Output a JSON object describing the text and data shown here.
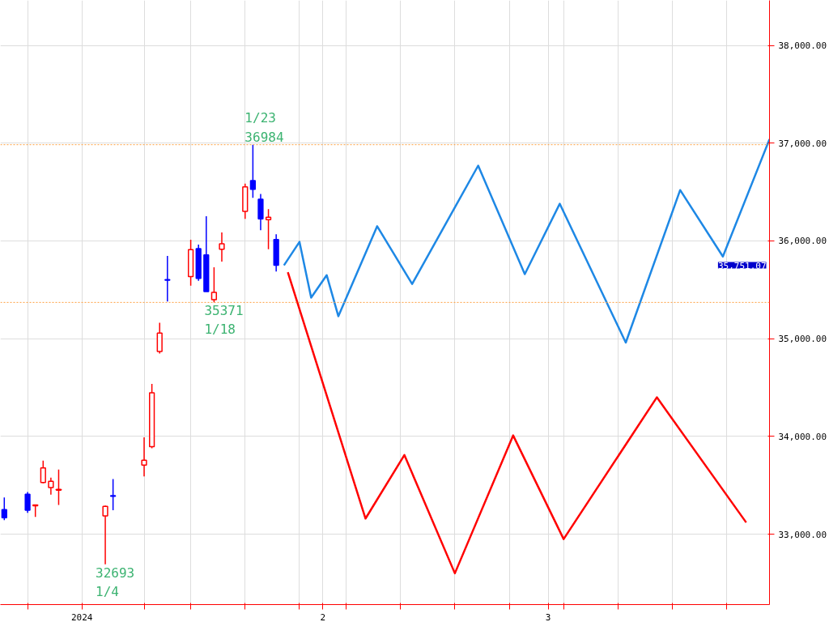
{
  "chart_data": {
    "type": "candlestick",
    "x": [
      "2023-12-22",
      "2023-12-25",
      "2023-12-26",
      "2023-12-27",
      "2023-12-28",
      "2023-12-29",
      "2024-01-04",
      "2024-01-05",
      "2024-01-09",
      "2024-01-10",
      "2024-01-11",
      "2024-01-12",
      "2024-01-15",
      "2024-01-16",
      "2024-01-17",
      "2024-01-18",
      "2024-01-19",
      "2024-01-22",
      "2024-01-23",
      "2024-01-24",
      "2024-01-25",
      "2024-01-26"
    ],
    "ohlc": [
      [
        33251,
        33375,
        33143,
        33168
      ],
      [
        33409,
        33431,
        33218,
        33246
      ],
      [
        33290,
        33298,
        33176,
        33298
      ],
      [
        33528,
        33752,
        33520,
        33678
      ],
      [
        33478,
        33578,
        33404,
        33541
      ],
      [
        33450,
        33661,
        33298,
        33458
      ],
      [
        33188,
        33292,
        32693,
        33284
      ],
      [
        33395,
        33564,
        33246,
        33387
      ],
      [
        33707,
        33990,
        33591,
        33757
      ],
      [
        33896,
        34537,
        33879,
        34446
      ],
      [
        34869,
        35163,
        34848,
        35058
      ],
      [
        35605,
        35846,
        35380,
        35597
      ],
      [
        35636,
        36012,
        35542,
        35910
      ],
      [
        35921,
        35963,
        35592,
        35616
      ],
      [
        35857,
        36253,
        35481,
        35481
      ],
      [
        35400,
        35730,
        35371,
        35473
      ],
      [
        35915,
        36087,
        35788,
        35971
      ],
      [
        36303,
        36585,
        36226,
        36552
      ],
      [
        36616,
        36984,
        36441,
        36527
      ],
      [
        36427,
        36480,
        36109,
        36226
      ],
      [
        36217,
        36325,
        35915,
        36242
      ],
      [
        36015,
        36068,
        35686,
        35751
      ]
    ],
    "colors": [
      "#0000ff",
      "#0000ff",
      "#ff0000",
      "#ff0000",
      "#ff0000",
      "#ff0000",
      "#ff0000",
      "#0000ff",
      "#ff0000",
      "#ff0000",
      "#ff0000",
      "#0000ff",
      "#ff0000",
      "#0000ff",
      "#0000ff",
      "#ff0000",
      "#ff0000",
      "#ff0000",
      "#0000ff",
      "#0000ff",
      "#ff0000",
      "#0000ff"
    ],
    "series": [
      {
        "type": "line",
        "color": "#1e88e5",
        "x": [
          "2024-01-27",
          "2024-01-29",
          "2024-01-30T12:00",
          "2024-02-01T12:00",
          "2024-02-03",
          "2024-02-08",
          "2024-02-12T12:00",
          "2024-02-21",
          "2024-02-27",
          "2024-03-02T12:00",
          "2024-03-11",
          "2024-03-18",
          "2024-03-23T12:00",
          "2024-03-29T12:00"
        ],
        "values": [
          35750,
          35990,
          35420,
          35650,
          35230,
          36150,
          35560,
          36770,
          35660,
          36380,
          34960,
          36520,
          35840,
          37040
        ]
      },
      {
        "type": "line",
        "color": "#ff0000",
        "x": [
          "2024-01-27T12:00",
          "2024-02-06T12:00",
          "2024-02-11T12:00",
          "2024-02-18",
          "2024-02-25T12:00",
          "2024-03-03",
          "2024-03-15",
          "2024-03-26T12:00"
        ],
        "values": [
          35680,
          33160,
          33810,
          32600,
          34010,
          32950,
          34400,
          33120
        ]
      }
    ],
    "xlim": [
      "2023-12-21T12:00",
      "2024-03-29T12:00"
    ],
    "xticks": [
      {
        "value": "2023-12-25",
        "label": null
      },
      {
        "value": "2024-01",
        "label": "2024"
      },
      {
        "value": "2024-01-09",
        "label": null
      },
      {
        "value": "2024-01-15",
        "label": null
      },
      {
        "value": "2024-01-22",
        "label": null
      },
      {
        "value": "2024-01-29",
        "label": null
      },
      {
        "value": "2024-02",
        "label": "2"
      },
      {
        "value": "2024-02-04",
        "label": null
      },
      {
        "value": "2024-02-11",
        "label": null
      },
      {
        "value": "2024-02-18",
        "label": null
      },
      {
        "value": "2024-02-25",
        "label": null
      },
      {
        "value": "2024-03",
        "label": "3"
      },
      {
        "value": "2024-03-03",
        "label": null
      },
      {
        "value": "2024-03-10",
        "label": null
      },
      {
        "value": "2024-03-17",
        "label": null
      },
      {
        "value": "2024-03-24",
        "label": null
      }
    ],
    "ylim": [
      32280,
      38460
    ],
    "yticks": [
      {
        "value": 33000,
        "label": "33,000.00"
      },
      {
        "value": 34000,
        "label": "34,000.00"
      },
      {
        "value": 35000,
        "label": "35,000.00"
      },
      {
        "value": 36000,
        "label": "36,000.00"
      },
      {
        "value": 37000,
        "label": "37,000.00"
      },
      {
        "value": 38000,
        "label": "38,000.00"
      }
    ],
    "grid": true,
    "ref_lines": [
      {
        "axis": "y",
        "value": 36984,
        "color": "#ffa040",
        "line_style": "dotted"
      },
      {
        "axis": "y",
        "value": 35371,
        "color": "#ffa040",
        "line_style": "dotted"
      }
    ],
    "annotations": [
      {
        "text": "1/23",
        "x": "2024-01-23",
        "y": 36984
      },
      {
        "text": "36984",
        "x": "2024-01-23",
        "y": 36984
      },
      {
        "text": "35371",
        "x": "2024-01-18",
        "y": 35371
      },
      {
        "text": "1/18",
        "x": "2024-01-18",
        "y": 35371
      },
      {
        "text": "32693",
        "x": "2024-01-04",
        "y": 32693
      },
      {
        "text": "1/4",
        "x": "2024-01-04",
        "y": 32693
      },
      "35,751.07"
    ]
  }
}
